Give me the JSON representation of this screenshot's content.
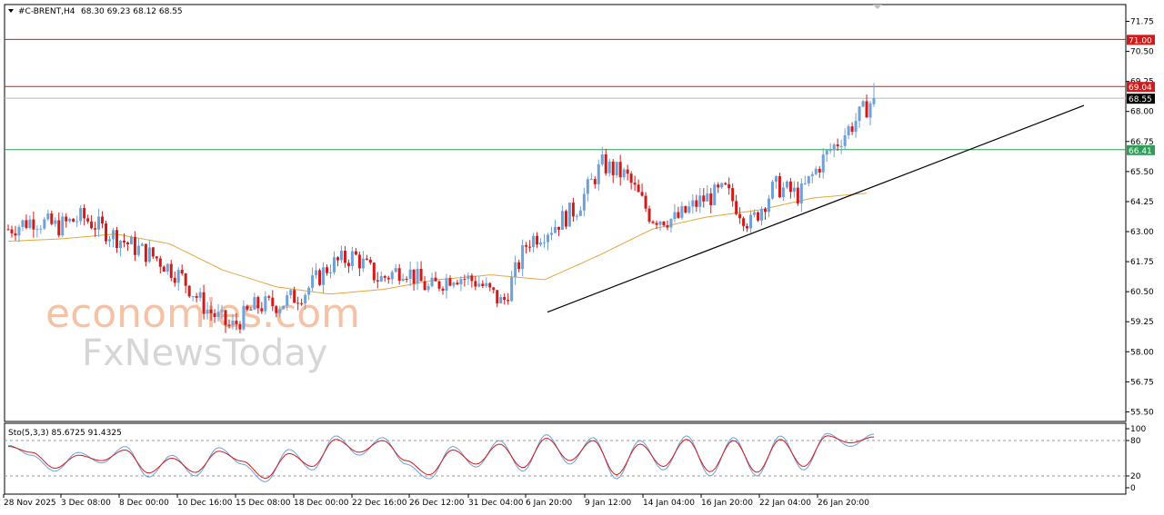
{
  "header": {
    "symbol": "#C-BRENT,H4",
    "ohlc": "68.30 69.23 68.12 68.55"
  },
  "watermark": {
    "line1": "economies.com",
    "line2": "FxNewsToday"
  },
  "colors": {
    "bull": "#6fa0d8",
    "bear": "#d11a1a",
    "ma": "#e5a53c",
    "resistance": "#d11a1a",
    "support": "#2e9e56",
    "current": "#000000",
    "stoch_main": "#6fa0d8",
    "stoch_signal": "#d11a1a"
  },
  "chart_data": [
    {
      "type": "candlestick",
      "symbol": "#C-BRENT",
      "timeframe": "H4",
      "ylim": [
        55.5,
        72.5
      ],
      "y_ticks": [
        "71.75",
        "70.50",
        "69.25",
        "68.00",
        "66.75",
        "65.50",
        "64.25",
        "63.00",
        "61.75",
        "60.50",
        "59.25",
        "58.00",
        "56.75",
        "55.50"
      ],
      "x_tick_labels": [
        "28 Nov 2025",
        "3 Dec 08:00",
        "8 Dec 00:00",
        "10 Dec 16:00",
        "15 Dec 08:00",
        "18 Dec 00:00",
        "22 Dec 16:00",
        "26 Dec 12:00",
        "31 Dec 04:00",
        "6 Jan 20:00",
        "9 Jan 12:00",
        "14 Jan 04:00",
        "16 Jan 20:00",
        "22 Jan 04:00",
        "26 Jan 20:00"
      ],
      "horizontal_levels": [
        {
          "value": 71.0,
          "label": "71.00",
          "color": "#d11a1a"
        },
        {
          "value": 69.04,
          "label": "69.04",
          "color": "#d11a1a"
        },
        {
          "value": 68.55,
          "label": "68.55",
          "color": "#000000"
        },
        {
          "value": 66.41,
          "label": "66.41",
          "color": "#2e9e56"
        }
      ],
      "trendline": {
        "from": [
          "6 Jan 20:00",
          59.65
        ],
        "to": [
          "end",
          68.25
        ]
      },
      "close_path": [
        [
          "28 Nov 2025",
          63.1
        ],
        [
          "1 Dec",
          63.5
        ],
        [
          "3 Dec 08:00",
          63.2
        ],
        [
          "5 Dec",
          63.6
        ],
        [
          "8 Dec 00:00",
          63.0
        ],
        [
          "9 Dec",
          62.4
        ],
        [
          "10 Dec 16:00",
          61.9
        ],
        [
          "12 Dec",
          61.1
        ],
        [
          "15 Dec 08:00",
          59.8
        ],
        [
          "16 Dec",
          59.0
        ],
        [
          "17 Dec",
          59.9
        ],
        [
          "18 Dec 00:00",
          60.0
        ],
        [
          "19 Dec",
          60.5
        ],
        [
          "22 Dec 16:00",
          61.6
        ],
        [
          "24 Dec",
          62.0
        ],
        [
          "26 Dec 12:00",
          61.0
        ],
        [
          "29 Dec",
          61.5
        ],
        [
          "31 Dec 04:00",
          60.6
        ],
        [
          "2 Jan",
          61.2
        ],
        [
          "5 Jan",
          60.9
        ],
        [
          "6 Jan 20:00",
          60.0
        ],
        [
          "8 Jan",
          62.6
        ],
        [
          "9 Jan 12:00",
          63.2
        ],
        [
          "12 Jan",
          64.0
        ],
        [
          "13 Jan",
          65.8
        ],
        [
          "14 Jan 04:00",
          65.3
        ],
        [
          "15 Jan",
          63.6
        ],
        [
          "16 Jan 20:00",
          63.5
        ],
        [
          "19 Jan",
          64.3
        ],
        [
          "21 Jan",
          64.7
        ],
        [
          "22 Jan 04:00",
          63.3
        ],
        [
          "23 Jan",
          64.9
        ],
        [
          "26 Jan 20:00",
          64.5
        ],
        [
          "27 Jan",
          66.1
        ],
        [
          "28 Jan",
          67.3
        ],
        [
          "29 Jan",
          68.55
        ]
      ],
      "moving_average_path": [
        62.6,
        62.7,
        62.9,
        62.5,
        61.4,
        60.7,
        60.4,
        60.6,
        61.0,
        61.2,
        61.0,
        62.0,
        63.1,
        63.6,
        63.9,
        64.4,
        64.6
      ]
    },
    {
      "type": "line",
      "title": "Sto(5,3,3) 85.6725 91.4325",
      "ylim": [
        0,
        100
      ],
      "y_ticks": [
        "100",
        "80",
        "20",
        "0"
      ],
      "levels": [
        80,
        20
      ],
      "series": [
        {
          "name": "main",
          "values": [
            72,
            55,
            28,
            60,
            42,
            70,
            18,
            55,
            20,
            68,
            40,
            10,
            65,
            30,
            88,
            55,
            85,
            40,
            15,
            70,
            35,
            80,
            28,
            90,
            40,
            85,
            15,
            80,
            30,
            88,
            20,
            85,
            20,
            88,
            30,
            92,
            70,
            91
          ]
        },
        {
          "name": "signal",
          "values": [
            70,
            60,
            33,
            55,
            46,
            64,
            25,
            50,
            26,
            62,
            45,
            16,
            58,
            36,
            82,
            60,
            80,
            46,
            22,
            64,
            40,
            74,
            34,
            84,
            46,
            80,
            22,
            74,
            36,
            82,
            27,
            80,
            26,
            82,
            36,
            88,
            76,
            86
          ]
        }
      ]
    }
  ]
}
